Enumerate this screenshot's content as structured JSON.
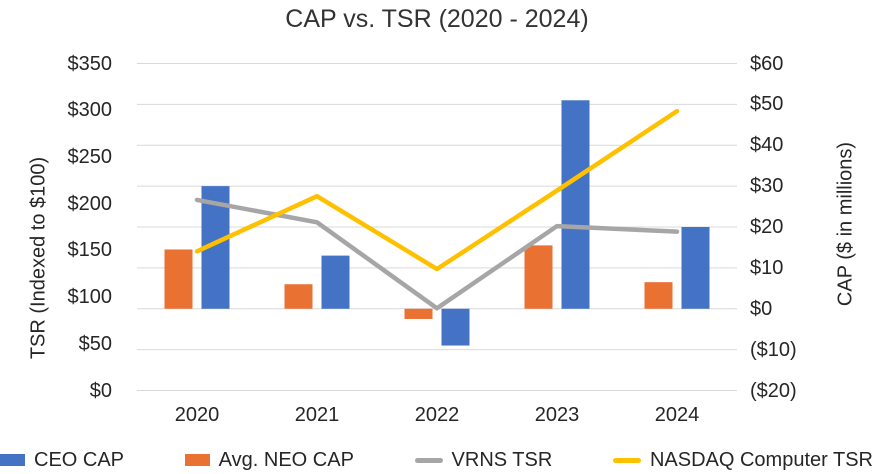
{
  "title": "CAP vs. TSR (2020 - 2024)",
  "chart_data": {
    "type": "combo-bar-line",
    "title": "CAP vs. TSR (2020 - 2024)",
    "categories": [
      "2020",
      "2021",
      "2022",
      "2023",
      "2024"
    ],
    "series": [
      {
        "name": "CEO CAP",
        "type": "bar",
        "axis": "right",
        "color": "#4472C4",
        "slot": 1,
        "values": [
          30,
          13,
          -9,
          51,
          20
        ]
      },
      {
        "name": "Avg. NEO CAP",
        "type": "bar",
        "axis": "right",
        "color": "#E97132",
        "slot": 0,
        "values": [
          14.5,
          6,
          -2.5,
          15.5,
          6.5
        ]
      },
      {
        "name": "VRNS TSR",
        "type": "line",
        "axis": "left",
        "color": "#A6A6A6",
        "values": [
          204,
          180,
          88,
          176,
          170
        ]
      },
      {
        "name": "NASDAQ Computer TSR",
        "type": "line",
        "axis": "left",
        "color": "#FFC000",
        "values": [
          149,
          208,
          130,
          214,
          299
        ]
      }
    ],
    "left_axis": {
      "title": "TSR (Indexed to $100)",
      "min": 0,
      "max": 350,
      "step": 50,
      "tick_labels": [
        "$350",
        "$300",
        "$250",
        "$200",
        "$150",
        "$100",
        "$50",
        "$0"
      ]
    },
    "right_axis": {
      "title": "CAP ($ in millions)",
      "min": -20,
      "max": 60,
      "step": 10,
      "tick_labels": [
        "$60",
        "$50",
        "$40",
        "$30",
        "$20",
        "$10",
        "$0",
        "($10)",
        "($20)"
      ]
    },
    "grid": "horizontal",
    "gridline_color": "#D9D9D9",
    "legend_position": "bottom"
  }
}
